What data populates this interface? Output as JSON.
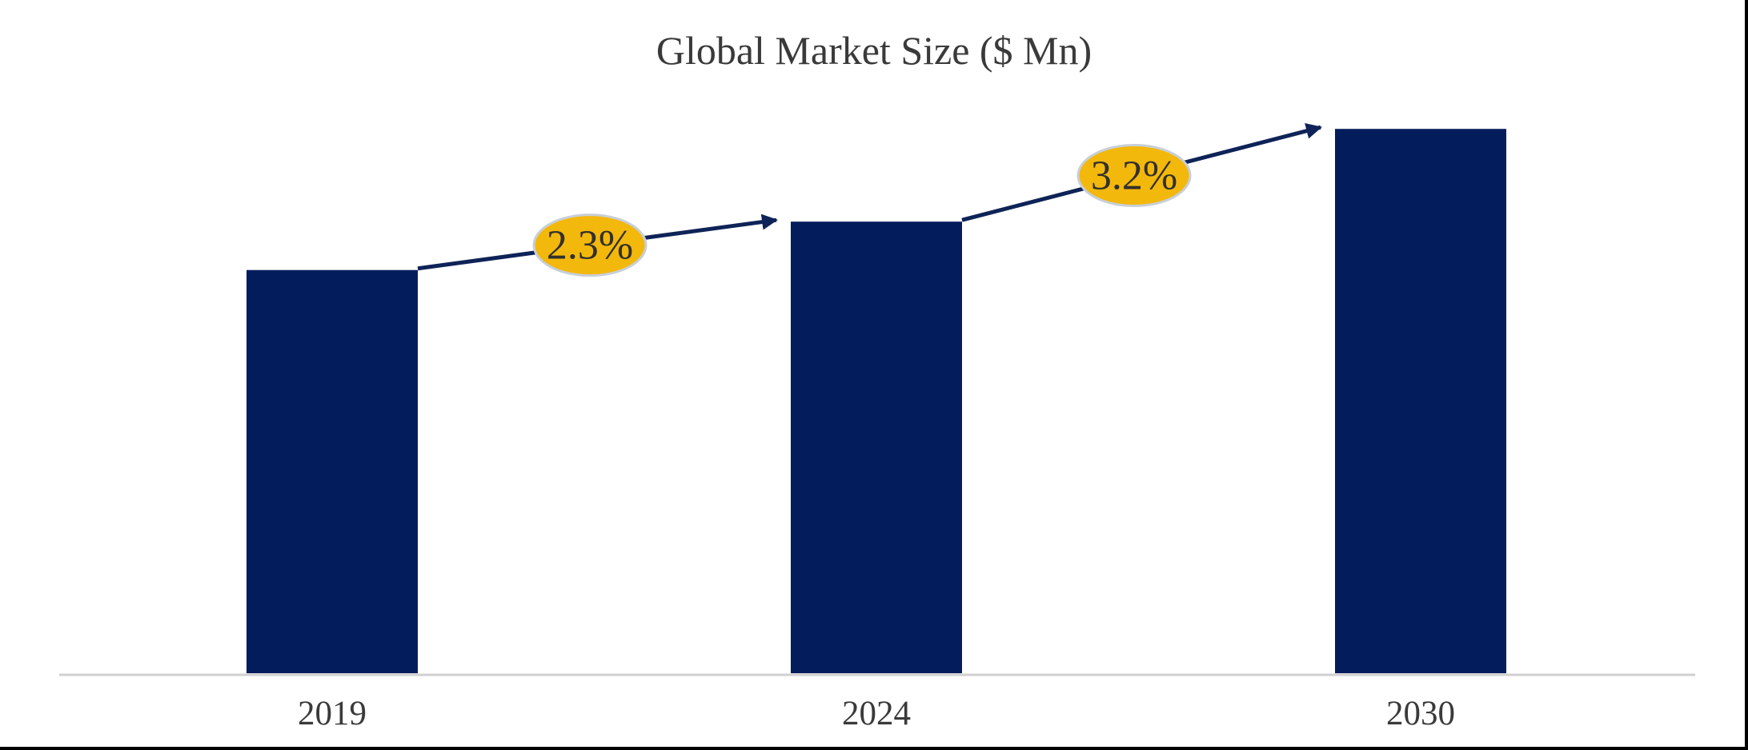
{
  "chart_data": {
    "type": "bar",
    "title": "Global Market Size ($ Mn)",
    "xlabel": "",
    "ylabel": "",
    "categories": [
      "2019",
      "2024",
      "2030"
    ],
    "values": [
      100,
      112,
      135
    ],
    "ylim": [
      0,
      140
    ],
    "grid": false,
    "legend": "none",
    "growth_annotations": [
      {
        "from": "2019",
        "to": "2024",
        "label": "2.3%"
      },
      {
        "from": "2024",
        "to": "2030",
        "label": "3.2%"
      }
    ],
    "colors": {
      "bar": "#021c5c",
      "arrow": "#0e2357",
      "badge_fill": "#f3b80c",
      "badge_stroke": "#c8cfd8",
      "baseline": "#d0d0d0"
    }
  }
}
